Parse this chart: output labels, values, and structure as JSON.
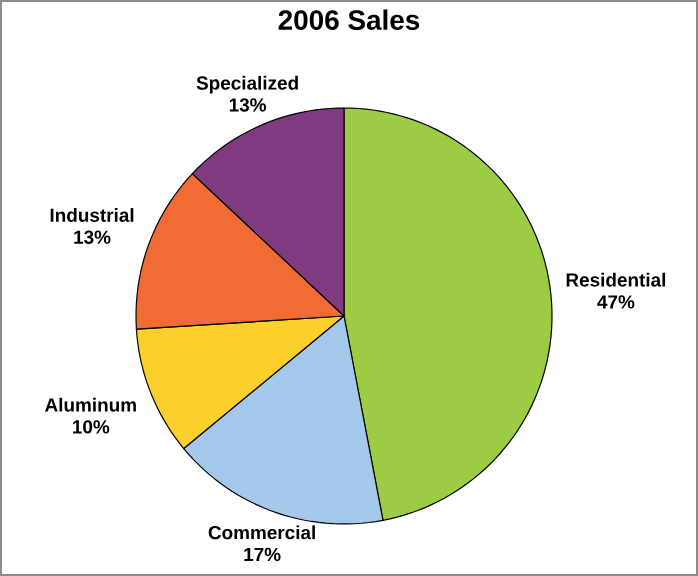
{
  "chart_data": {
    "type": "pie",
    "title": "2006 Sales",
    "categories": [
      "Residential",
      "Commercial",
      "Aluminum",
      "Industrial",
      "Specialized"
    ],
    "values": [
      47,
      17,
      10,
      13,
      13
    ],
    "colors": [
      "#9ccc44",
      "#a4c8ea",
      "#fcd02c",
      "#f26b35",
      "#7f3a80"
    ],
    "value_labels": [
      "47%",
      "17%",
      "10%",
      "13%",
      "13%"
    ]
  }
}
